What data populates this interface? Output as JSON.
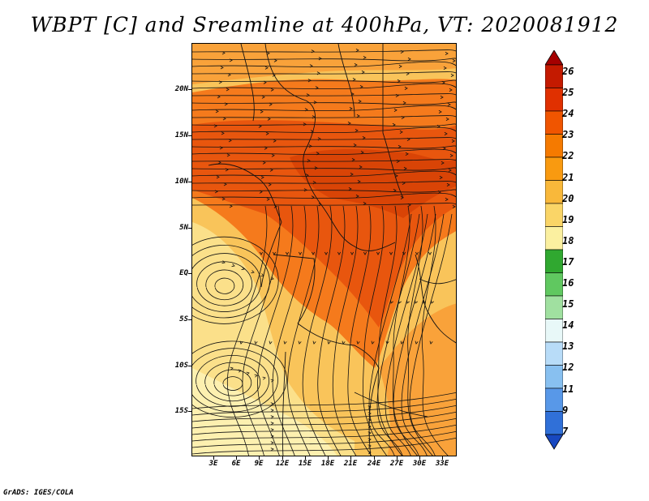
{
  "title": "WBPT [C] and Sreamline at 400hPa, VT: 2020081912",
  "credit": "GrADS: IGES/COLA",
  "lat_labels": [
    "20N",
    "15N",
    "10N",
    "5N",
    "EQ",
    "5S",
    "10S",
    "15S"
  ],
  "lon_labels": [
    "3E",
    "6E",
    "9E",
    "12E",
    "15E",
    "18E",
    "21E",
    "24E",
    "27E",
    "30E",
    "33E"
  ],
  "colorbar": {
    "labels": [
      "26",
      "25",
      "24",
      "23",
      "22",
      "21",
      "20",
      "19",
      "18",
      "17",
      "16",
      "15",
      "14",
      "13",
      "12",
      "11",
      "9",
      "7"
    ],
    "colors": [
      "#a50000",
      "#c41a00",
      "#e03000",
      "#f05500",
      "#f57a00",
      "#f99a10",
      "#f9b83a",
      "#fad567",
      "#fbf0a0",
      "#30a830",
      "#60c860",
      "#a0e0a0",
      "#e8f8f8",
      "#b8dcf8",
      "#88c0f0",
      "#5898e8",
      "#3070d8",
      "#1848c0"
    ]
  },
  "map": {
    "fill_colors": {
      "hot": "#e8560e",
      "warm": "#f57a1c",
      "mid": "#f9a23a",
      "cool": "#f9c45a",
      "pale": "#fbe08a",
      "lightest": "#fdf0b0"
    }
  }
}
